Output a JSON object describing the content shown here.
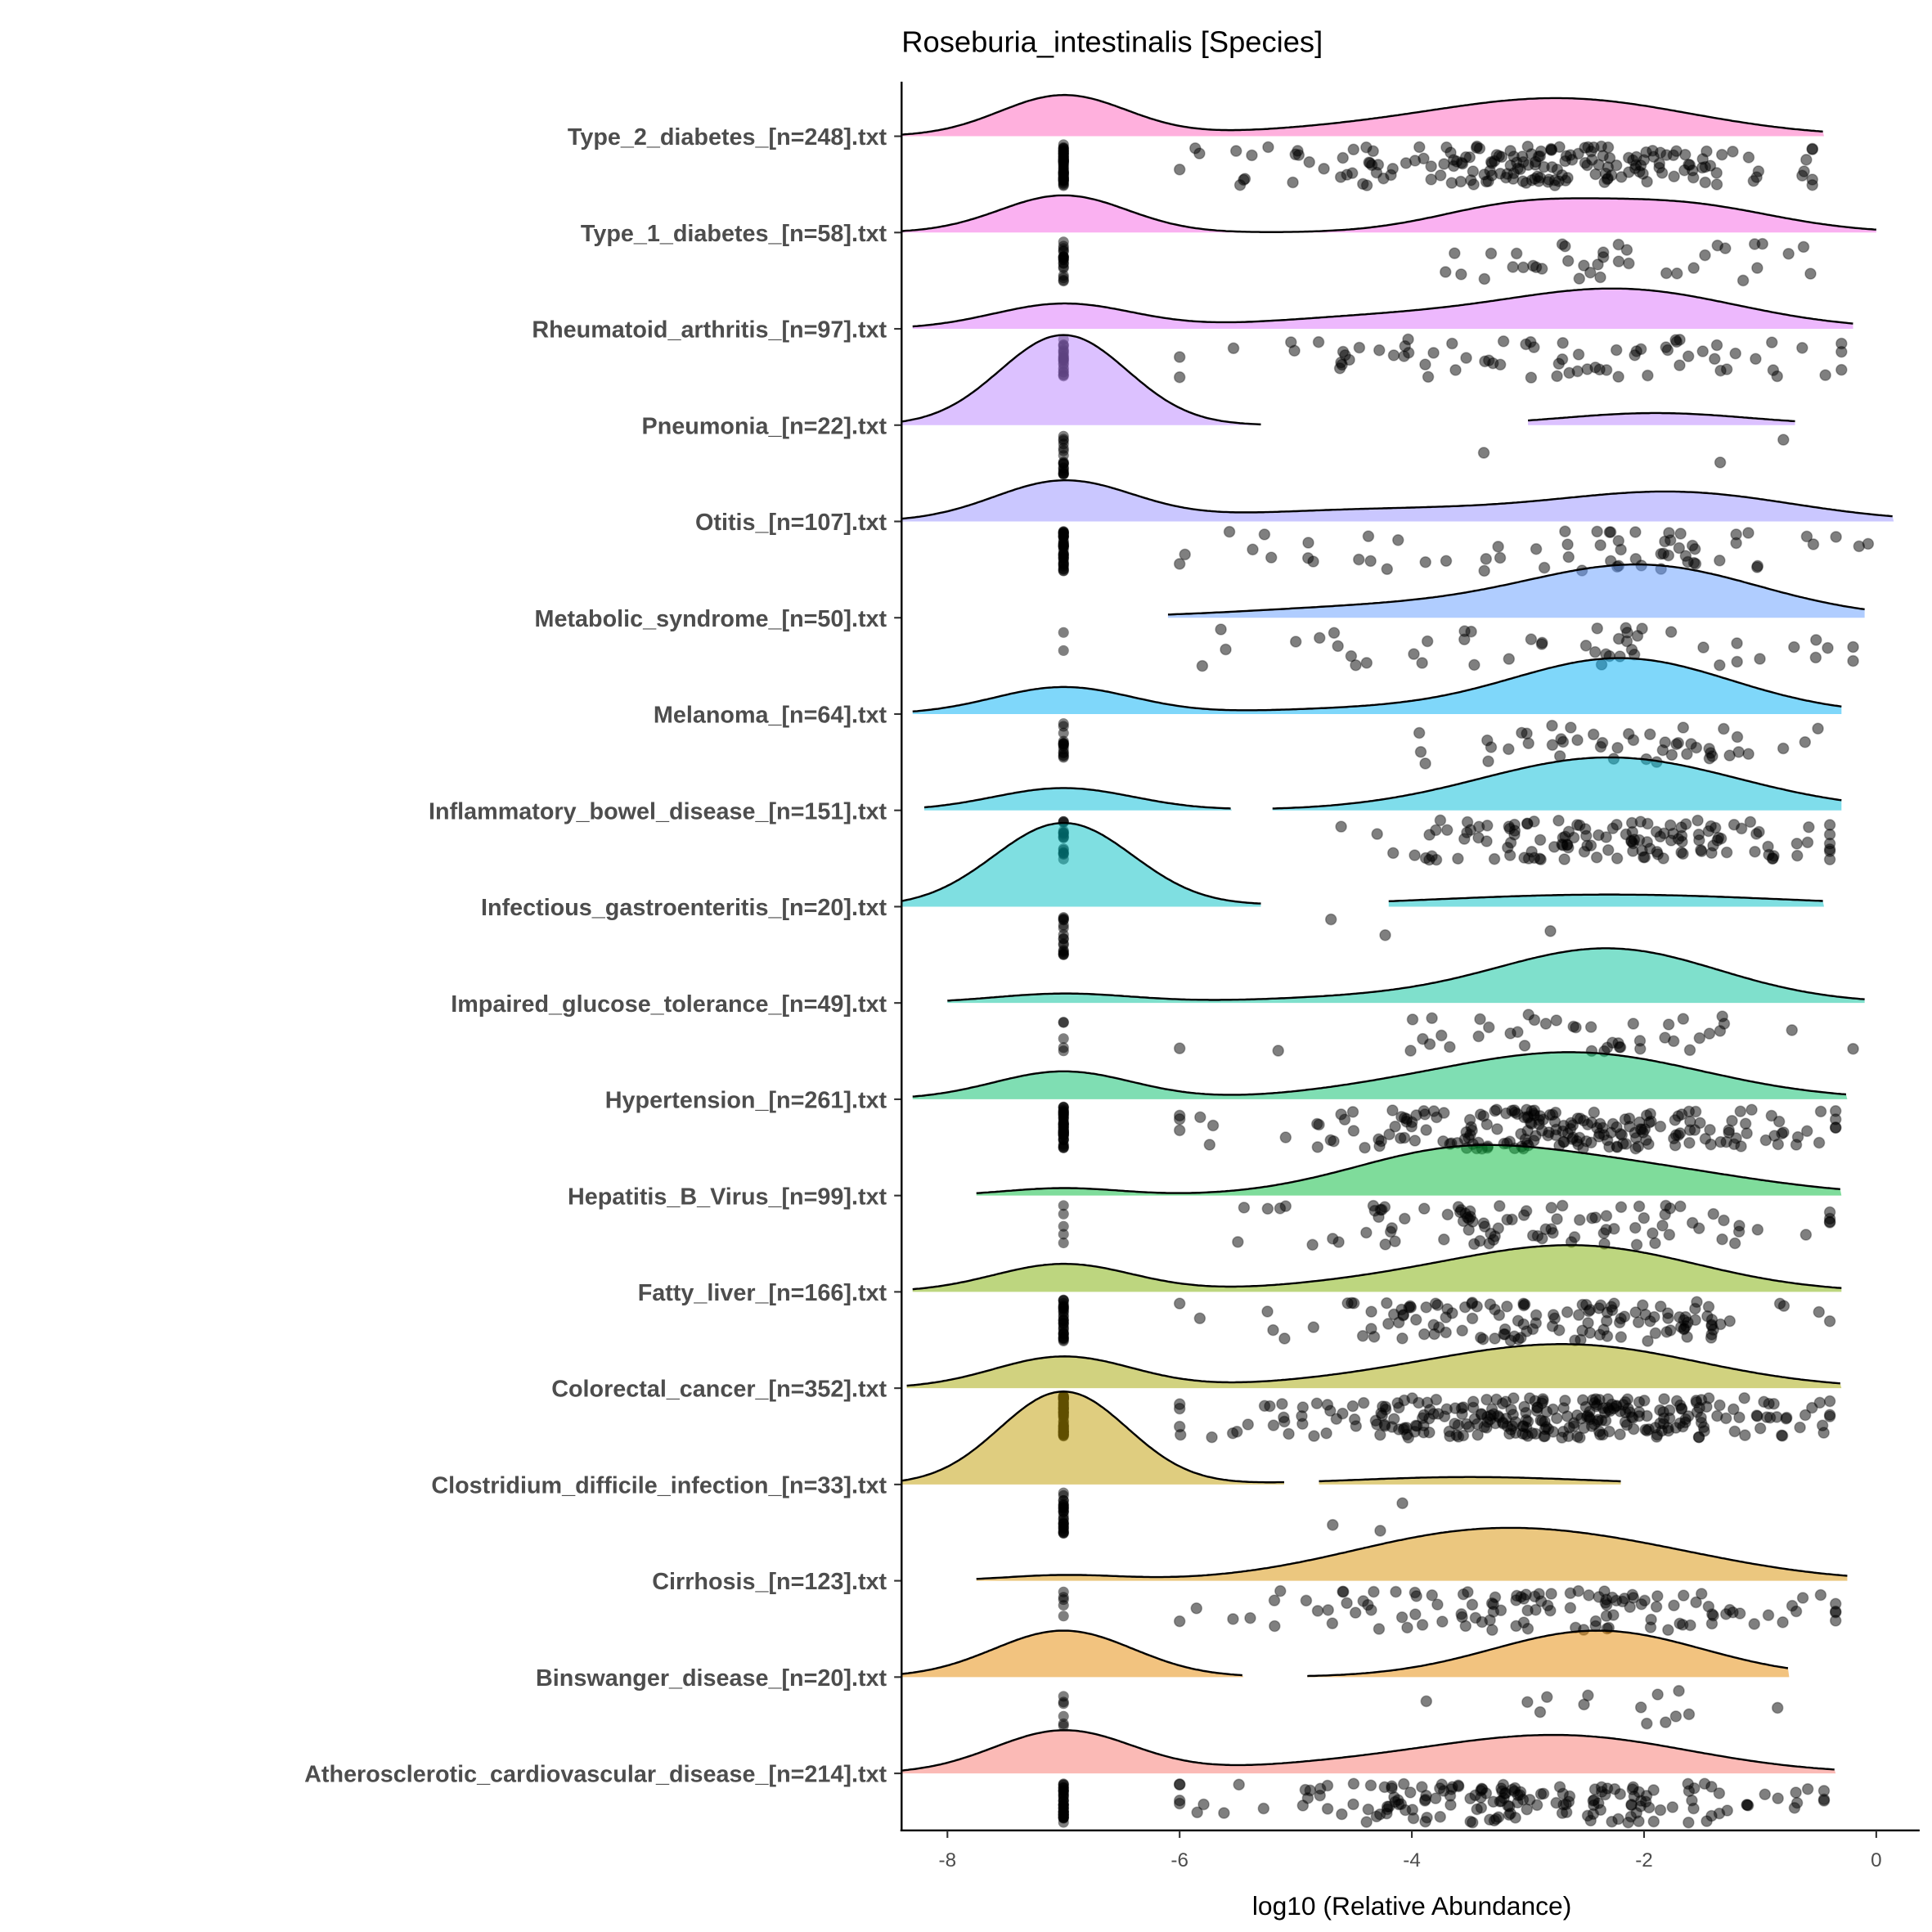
{
  "chart_data": {
    "type": "ridgeline",
    "title": "Roseburia_intestinalis [Species]",
    "xlabel": "log10 (Relative Abundance)",
    "ylabel": "",
    "xlim": [
      -8.4,
      0.4
    ],
    "xticks": [
      "-8",
      "-6",
      "-4",
      "-2",
      "0"
    ],
    "xtick_values": [
      -8,
      -6,
      -4,
      -2,
      0
    ],
    "grid": false,
    "legend": "none",
    "points": "jittered raw values drawn below each ridge; zero abundance plotted at -7",
    "groups": [
      {
        "label": "Type_2_diabetes_[n=248].txt",
        "n": 248,
        "color": "#FF62BC",
        "segments": [
          [
            -8.4,
            -0.45
          ]
        ],
        "components": [
          [
            -7,
            0.55,
            0.44
          ],
          [
            -2.7,
            1.1,
            0.4
          ],
          [
            -4.6,
            1.0,
            0.06
          ]
        ],
        "zero_share": 0.25
      },
      {
        "label": "Type_1_diabetes_[n=58].txt",
        "n": 58,
        "color": "#F564E3",
        "segments": [
          [
            -8.4,
            0.0
          ]
        ],
        "components": [
          [
            -7,
            0.55,
            0.4
          ],
          [
            -3.1,
            0.7,
            0.27
          ],
          [
            -1.7,
            0.8,
            0.3
          ]
        ],
        "zero_share": 0.35
      },
      {
        "label": "Rheumatoid_arthritis_[n=97].txt",
        "n": 97,
        "color": "#DB72FB",
        "segments": [
          [
            -8.3,
            -0.2
          ]
        ],
        "components": [
          [
            -7,
            0.6,
            0.27
          ],
          [
            -2.2,
            1.0,
            0.42
          ],
          [
            -4.3,
            1.0,
            0.12
          ]
        ],
        "zero_share": 0.25
      },
      {
        "label": "Pneumonia_[n=22].txt",
        "n": 22,
        "color": "#B983FF",
        "segments": [
          [
            -8.4,
            -5.3
          ],
          [
            -3.0,
            -0.7
          ]
        ],
        "components": [
          [
            -7,
            0.55,
            0.97
          ],
          [
            -1.9,
            0.8,
            0.13
          ]
        ],
        "zero_share": 0.85
      },
      {
        "label": "Otitis_[n=107].txt",
        "n": 107,
        "color": "#9590FF",
        "segments": [
          [
            -8.4,
            0.15
          ]
        ],
        "components": [
          [
            -7,
            0.6,
            0.43
          ],
          [
            -1.7,
            1.0,
            0.3
          ],
          [
            -4.2,
            1.3,
            0.13
          ]
        ],
        "zero_share": 0.4
      },
      {
        "label": "Metabolic_syndrome_[n=50].txt",
        "n": 50,
        "color": "#619CFF",
        "segments": [
          [
            -6.1,
            -0.1
          ]
        ],
        "components": [
          [
            -2.0,
            1.0,
            0.55
          ],
          [
            -4.2,
            1.2,
            0.12
          ]
        ],
        "zero_share": 0.04
      },
      {
        "label": "Melanoma_[n=64].txt",
        "n": 64,
        "color": "#00B0F6",
        "segments": [
          [
            -8.3,
            -0.3
          ]
        ],
        "components": [
          [
            -7,
            0.6,
            0.29
          ],
          [
            -2.2,
            0.95,
            0.6
          ],
          [
            -4.5,
            0.9,
            0.05
          ]
        ],
        "zero_share": 0.25
      },
      {
        "label": "Inflammatory_bowel_disease_[n=151].txt",
        "n": 151,
        "color": "#00BCD8",
        "segments": [
          [
            -8.2,
            -5.55
          ],
          [
            -5.2,
            -0.3
          ]
        ],
        "components": [
          [
            -7,
            0.6,
            0.24
          ],
          [
            -2.3,
            1.1,
            0.57
          ]
        ],
        "zero_share": 0.12
      },
      {
        "label": "Infectious_gastroenteritis_[n=20].txt",
        "n": 20,
        "color": "#00BFC4",
        "segments": [
          [
            -8.4,
            -5.3
          ],
          [
            -4.2,
            -0.45
          ]
        ],
        "components": [
          [
            -7,
            0.6,
            0.9
          ],
          [
            -2.3,
            1.5,
            0.13
          ]
        ],
        "zero_share": 0.85
      },
      {
        "label": "Impaired_glucose_tolerance_[n=49].txt",
        "n": 49,
        "color": "#00C19A",
        "segments": [
          [
            -8.0,
            -0.1
          ]
        ],
        "components": [
          [
            -7,
            0.6,
            0.1
          ],
          [
            -2.3,
            0.95,
            0.58
          ],
          [
            -4.3,
            1.0,
            0.06
          ]
        ],
        "zero_share": 0.1
      },
      {
        "label": "Hypertension_[n=261].txt",
        "n": 261,
        "color": "#00BE67",
        "segments": [
          [
            -8.3,
            -0.25
          ]
        ],
        "components": [
          [
            -7,
            0.6,
            0.3
          ],
          [
            -2.6,
            1.1,
            0.5
          ],
          [
            -4.3,
            0.8,
            0.06
          ]
        ],
        "zero_share": 0.2
      },
      {
        "label": "Hepatitis_B_Virus_[n=99].txt",
        "n": 99,
        "color": "#00BA38",
        "segments": [
          [
            -7.75,
            -0.3
          ]
        ],
        "components": [
          [
            -7,
            0.5,
            0.08
          ],
          [
            -3.7,
            0.9,
            0.4
          ],
          [
            -2.2,
            1.1,
            0.3
          ]
        ],
        "zero_share": 0.05
      },
      {
        "label": "Fatty_liver_[n=166].txt",
        "n": 166,
        "color": "#7CAE00",
        "segments": [
          [
            -8.3,
            -0.3
          ]
        ],
        "components": [
          [
            -7,
            0.6,
            0.3
          ],
          [
            -2.5,
            1.0,
            0.46
          ],
          [
            -4.0,
            1.0,
            0.12
          ]
        ],
        "zero_share": 0.2
      },
      {
        "label": "Colorectal_cancer_[n=352].txt",
        "n": 352,
        "color": "#A3A500",
        "segments": [
          [
            -8.35,
            -0.3
          ]
        ],
        "components": [
          [
            -7,
            0.6,
            0.34
          ],
          [
            -2.6,
            1.1,
            0.45
          ],
          [
            -4.2,
            1.0,
            0.08
          ]
        ],
        "zero_share": 0.2
      },
      {
        "label": "Clostridium_difficile_infection_[n=33].txt",
        "n": 33,
        "color": "#C09B00",
        "segments": [
          [
            -8.4,
            -5.1
          ],
          [
            -4.8,
            -2.2
          ]
        ],
        "components": [
          [
            -7,
            0.55,
            1.0
          ],
          [
            -3.5,
            1.0,
            0.08
          ]
        ],
        "zero_share": 0.9
      },
      {
        "label": "Cirrhosis_[n=123].txt",
        "n": 123,
        "color": "#D89000",
        "segments": [
          [
            -7.75,
            -0.25
          ]
        ],
        "components": [
          [
            -7,
            0.5,
            0.06
          ],
          [
            -3.5,
            1.1,
            0.48
          ],
          [
            -2.0,
            1.0,
            0.22
          ]
        ],
        "zero_share": 0.04
      },
      {
        "label": "Binswanger_disease_[n=20].txt",
        "n": 20,
        "color": "#E58700",
        "segments": [
          [
            -8.4,
            -5.45
          ],
          [
            -4.9,
            -0.75
          ]
        ],
        "components": [
          [
            -7,
            0.6,
            0.5
          ],
          [
            -2.4,
            0.9,
            0.5
          ]
        ],
        "zero_share": 0.3
      },
      {
        "label": "Atherosclerotic_cardiovascular_disease_[n=214].txt",
        "n": 214,
        "color": "#F8766D",
        "segments": [
          [
            -8.4,
            -0.35
          ]
        ],
        "components": [
          [
            -7,
            0.6,
            0.46
          ],
          [
            -2.7,
            1.1,
            0.4
          ],
          [
            -4.6,
            1.0,
            0.08
          ]
        ],
        "zero_share": 0.2
      }
    ]
  }
}
